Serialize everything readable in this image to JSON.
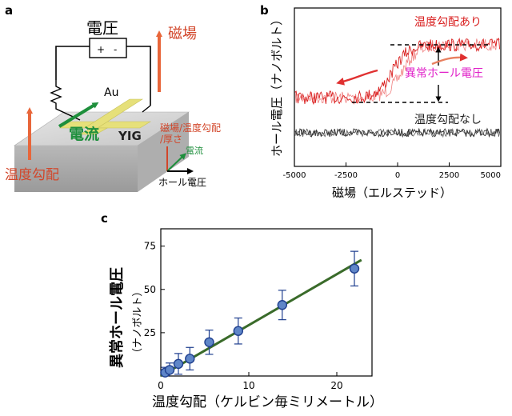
{
  "panel_a": {
    "label": "a",
    "voltage_label": "電圧",
    "magnetic_field_label": "磁場",
    "meter_plus": "+",
    "meter_minus": "-",
    "au_label": "Au",
    "current_label": "電流",
    "yig_label": "YIG",
    "temp_gradient_label": "温度勾配",
    "legend": {
      "line1": "磁場/温度勾配",
      "line2": "/厚さ",
      "current": "電流",
      "hall_voltage": "ホール電圧"
    },
    "colors": {
      "field_arrow": "#e8663a",
      "current_arrow": "#1e8f3c",
      "au": "#e6e07a"
    }
  },
  "panel_b": {
    "label": "b",
    "ylabel": "ホール電圧（ナノボルト）",
    "xlabel": "磁場（エルステッド）",
    "series_top_label": "温度勾配あり",
    "series_bottom_label": "温度勾配なし",
    "annotation": "異常ホール電圧",
    "colors": {
      "with_gradient": "#d92020",
      "without_gradient": "#404040",
      "annotation": "#e020c8",
      "arrow": "#e03030"
    }
  },
  "panel_c": {
    "label": "c",
    "ylabel_main": "異常ホール電圧",
    "ylabel_unit": "（ナノボルト）",
    "xlabel": "温度勾配（ケルビン毎ミリメートル）",
    "colors": {
      "fit_line": "#3a6b2a",
      "marker": "#5f86c8",
      "marker_edge": "#1f3f8f"
    }
  },
  "chart_data": [
    {
      "type": "line",
      "panel": "b",
      "xlabel": "磁場（エルステッド）",
      "ylabel": "ホール電圧（ナノボルト）",
      "xlim": [
        -5000,
        5000
      ],
      "x_ticks": [
        -5000,
        -2500,
        0,
        2500,
        5000
      ],
      "series": [
        {
          "name": "温度勾配あり",
          "x": [
            -5000,
            -2500,
            -1500,
            -1000,
            -500,
            0,
            500,
            1000,
            1500,
            2500,
            5000
          ]
        },
        {
          "name": "温度勾配なし",
          "x": [
            -5000,
            5000
          ]
        }
      ]
    },
    {
      "type": "scatter",
      "panel": "c",
      "xlabel": "温度勾配（ケルビン毎ミリメートル）",
      "ylabel": "異常ホール電圧（ナノボルト）",
      "xlim": [
        0,
        24
      ],
      "ylim": [
        0,
        85
      ],
      "x_ticks": [
        0,
        10,
        20
      ],
      "y_ticks": [
        25,
        50,
        75
      ],
      "points": [
        {
          "x": 0.5,
          "y": 2,
          "err": 3
        },
        {
          "x": 1.0,
          "y": 3.5,
          "err": 4
        },
        {
          "x": 2.0,
          "y": 7,
          "err": 6
        },
        {
          "x": 3.3,
          "y": 10,
          "err": 6.5
        },
        {
          "x": 5.5,
          "y": 19.5,
          "err": 7
        },
        {
          "x": 8.8,
          "y": 26,
          "err": 7.5
        },
        {
          "x": 13.8,
          "y": 41,
          "err": 8.5
        },
        {
          "x": 22.0,
          "y": 62,
          "err": 10
        }
      ],
      "fit": {
        "x": [
          0,
          22.8
        ],
        "y": [
          0,
          67
        ]
      }
    }
  ]
}
